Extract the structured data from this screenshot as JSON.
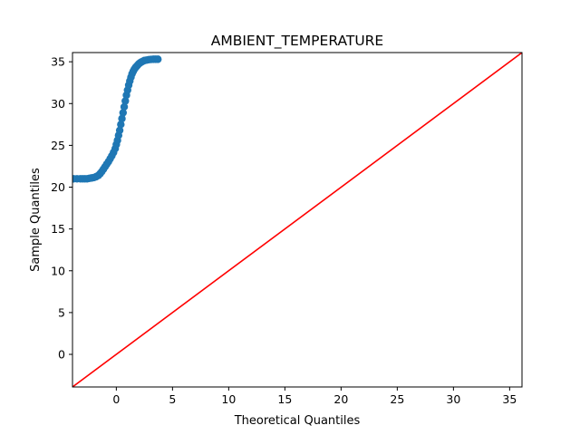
{
  "chart_data": {
    "type": "scatter",
    "title": "AMBIENT_TEMPERATURE",
    "xlabel": "Theoretical Quantiles",
    "ylabel": "Sample Quantiles",
    "xlim": [
      -3.9,
      36.1
    ],
    "ylim": [
      -3.9,
      36.1
    ],
    "xticks": [
      0,
      5,
      10,
      15,
      20,
      25,
      30,
      35
    ],
    "yticks": [
      0,
      5,
      10,
      15,
      20,
      25,
      30,
      35
    ],
    "grid": false,
    "legend": "none",
    "series": [
      {
        "kind": "points",
        "color": "#1f77b4",
        "x": [
          -3.8,
          -3.5,
          -3.2,
          -3.0,
          -2.8,
          -2.6,
          -2.4,
          -2.2,
          -2.0,
          -1.8,
          -1.6,
          -1.45,
          -1.3,
          -1.15,
          -1.0,
          -0.85,
          -0.7,
          -0.55,
          -0.4,
          -0.25,
          -0.1,
          0.0,
          0.1,
          0.2,
          0.3,
          0.4,
          0.5,
          0.6,
          0.7,
          0.8,
          0.9,
          1.0,
          1.1,
          1.2,
          1.3,
          1.4,
          1.5,
          1.6,
          1.7,
          1.8,
          1.9,
          2.0,
          2.1,
          2.2,
          2.35,
          2.5,
          2.7,
          2.9,
          3.1,
          3.3,
          3.5,
          3.7
        ],
        "y": [
          21.0,
          21.0,
          21.0,
          21.0,
          21.0,
          21.0,
          21.05,
          21.1,
          21.15,
          21.25,
          21.4,
          21.6,
          21.85,
          22.15,
          22.45,
          22.75,
          23.05,
          23.4,
          23.75,
          24.15,
          24.6,
          25.1,
          25.6,
          26.2,
          26.8,
          27.5,
          28.2,
          28.9,
          29.6,
          30.3,
          31.0,
          31.6,
          32.2,
          32.7,
          33.15,
          33.55,
          33.85,
          34.1,
          34.3,
          34.45,
          34.6,
          34.75,
          34.85,
          34.95,
          35.05,
          35.15,
          35.2,
          35.25,
          35.28,
          35.3,
          35.3,
          35.3
        ]
      },
      {
        "kind": "reference-line",
        "color": "#ff0000",
        "x": [
          -3.9,
          36.1
        ],
        "y": [
          -3.9,
          36.1
        ]
      }
    ]
  }
}
